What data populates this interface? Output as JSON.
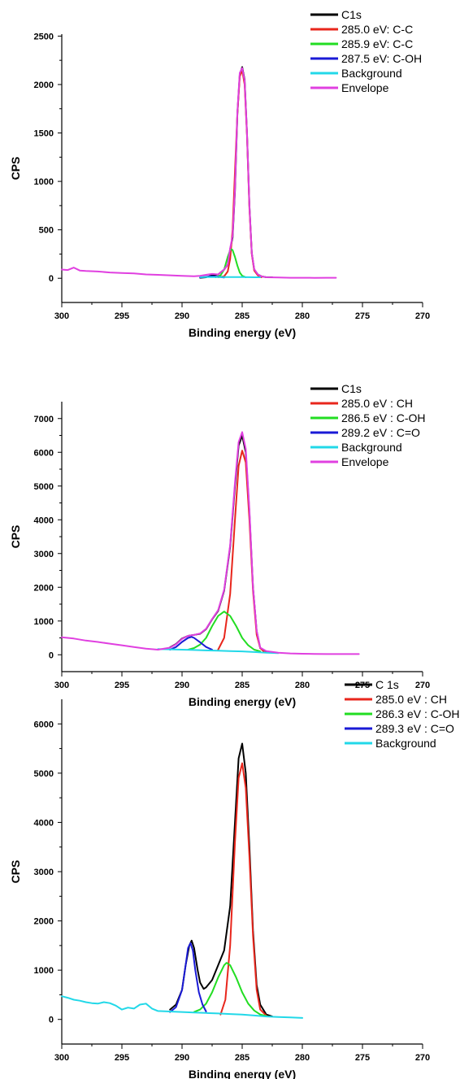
{
  "chart_data": [
    {
      "type": "line",
      "title": "",
      "xlabel": "Binding energy (eV)",
      "ylabel": "CPS",
      "xlim": [
        300,
        270
      ],
      "ylim": [
        -250,
        2520
      ],
      "x_ticks": [
        300,
        295,
        290,
        285,
        280,
        275,
        270
      ],
      "y_ticks": [
        0,
        500,
        1000,
        1500,
        2000,
        2500
      ],
      "legend_position": "top-right",
      "series": [
        {
          "name": "C1s",
          "color": "#000000",
          "x": [
            288.5,
            288.0,
            287.5,
            287.0,
            286.5,
            286.2,
            286.0,
            285.8,
            285.6,
            285.4,
            285.2,
            285.0,
            284.8,
            284.6,
            284.4,
            284.2,
            284.0,
            283.7,
            283.4,
            283.0,
            282.5
          ],
          "y": [
            5,
            10,
            30,
            40,
            90,
            140,
            300,
            420,
            900,
            1700,
            2100,
            2180,
            2050,
            1500,
            750,
            260,
            90,
            40,
            20,
            10,
            10
          ]
        },
        {
          "name": "285.0 eV: C-C",
          "color": "#e8261c",
          "x": [
            287.0,
            286.5,
            286.2,
            286.0,
            285.8,
            285.6,
            285.4,
            285.2,
            285.0,
            284.8,
            284.6,
            284.4,
            284.2,
            284.0,
            283.7,
            283.4
          ],
          "y": [
            10,
            20,
            70,
            200,
            500,
            1100,
            1700,
            2080,
            2150,
            2000,
            1480,
            720,
            250,
            80,
            30,
            10
          ]
        },
        {
          "name": "285.9 eV: C-C",
          "color": "#22dd22",
          "x": [
            287.2,
            286.8,
            286.5,
            286.2,
            286.0,
            285.9,
            285.8,
            285.6,
            285.4,
            285.2,
            285.0,
            284.7
          ],
          "y": [
            10,
            30,
            90,
            220,
            290,
            300,
            290,
            220,
            130,
            60,
            25,
            10
          ]
        },
        {
          "name": "287.5 eV: C-OH",
          "color": "#1a1ad6",
          "x": [
            288.5,
            288.0,
            287.5,
            287.0,
            286.5
          ],
          "y": [
            8,
            15,
            20,
            15,
            8
          ]
        },
        {
          "name": "Background",
          "color": "#22d8e8",
          "x": [
            288.5,
            287.0,
            286.0,
            285.0,
            284.0,
            283.5
          ],
          "y": [
            12,
            12,
            12,
            12,
            10,
            10
          ]
        },
        {
          "name": "Envelope",
          "color": "#e040e0",
          "x": [
            300.0,
            299.5,
            299.0,
            298.5,
            298.0,
            297.0,
            296.0,
            295.0,
            294.0,
            293.0,
            292.0,
            291.0,
            290.0,
            289.0,
            288.5,
            288.0,
            287.5,
            287.0,
            286.5,
            286.2,
            286.0,
            285.8,
            285.6,
            285.4,
            285.2,
            285.0,
            284.8,
            284.6,
            284.4,
            284.2,
            284.0,
            283.7,
            283.4,
            283.0,
            282.0,
            281.0,
            280.0,
            279.0,
            278.0,
            277.2
          ],
          "y": [
            90,
            85,
            110,
            80,
            75,
            70,
            60,
            55,
            50,
            40,
            35,
            30,
            25,
            20,
            25,
            35,
            45,
            40,
            90,
            140,
            310,
            440,
            920,
            1720,
            2120,
            2170,
            2040,
            1500,
            750,
            260,
            95,
            40,
            20,
            10,
            8,
            5,
            5,
            4,
            5,
            5
          ]
        }
      ]
    },
    {
      "type": "line",
      "title": "",
      "xlabel": "Binding energy (eV)",
      "ylabel": "CPS",
      "xlim": [
        300,
        270
      ],
      "ylim": [
        -500,
        7500
      ],
      "x_ticks": [
        300,
        295,
        290,
        285,
        280,
        275,
        270
      ],
      "y_ticks": [
        0,
        1000,
        2000,
        3000,
        4000,
        5000,
        6000,
        7000
      ],
      "legend_position": "top-right",
      "series": [
        {
          "name": "C1s",
          "color": "#000000",
          "x": [
            291.0,
            290.5,
            290.0,
            289.5,
            289.0,
            288.5,
            288.0,
            287.5,
            287.0,
            286.5,
            286.0,
            285.6,
            285.3,
            285.0,
            284.7,
            284.4,
            284.1,
            283.8,
            283.5,
            283.0
          ],
          "y": [
            220,
            320,
            480,
            560,
            590,
            620,
            760,
            1050,
            1300,
            1900,
            3200,
            5000,
            6200,
            6500,
            6000,
            4200,
            2000,
            700,
            200,
            100
          ]
        },
        {
          "name": "285.0 eV :  CH",
          "color": "#e8261c",
          "x": [
            287.0,
            286.5,
            286.0,
            285.6,
            285.3,
            285.0,
            284.7,
            284.4,
            284.1,
            283.8,
            283.5,
            283.2
          ],
          "y": [
            150,
            500,
            1800,
            4000,
            5600,
            6050,
            5700,
            4000,
            1900,
            600,
            200,
            100
          ]
        },
        {
          "name": "286.5 eV : C-OH",
          "color": "#22dd22",
          "x": [
            289.5,
            289.0,
            288.5,
            288.0,
            287.5,
            287.0,
            286.5,
            286.0,
            285.5,
            285.0,
            284.5,
            284.0,
            283.5
          ],
          "y": [
            150,
            200,
            300,
            500,
            850,
            1150,
            1280,
            1150,
            850,
            500,
            280,
            150,
            100
          ]
        },
        {
          "name": "289.2 eV : C=O",
          "color": "#1a1ad6",
          "x": [
            291.0,
            290.5,
            290.0,
            289.5,
            289.2,
            289.0,
            288.5,
            288.0,
            287.5
          ],
          "y": [
            150,
            230,
            380,
            500,
            530,
            500,
            370,
            230,
            150
          ]
        },
        {
          "name": "Background",
          "color": "#22d8e8",
          "x": [
            292.0,
            291.0,
            290.0,
            289.0,
            288.0,
            287.0,
            286.0,
            285.0,
            284.0,
            283.0,
            282.0
          ],
          "y": [
            170,
            160,
            150,
            140,
            130,
            120,
            110,
            100,
            80,
            60,
            50
          ]
        },
        {
          "name": "Envelope",
          "color": "#e040e0",
          "x": [
            300.0,
            299.0,
            298.0,
            297.0,
            296.0,
            295.0,
            294.0,
            293.0,
            292.0,
            291.0,
            290.5,
            290.0,
            289.5,
            289.0,
            288.5,
            288.0,
            287.5,
            287.0,
            286.5,
            286.0,
            285.6,
            285.3,
            285.0,
            284.7,
            284.4,
            284.1,
            283.8,
            283.5,
            283.0,
            282.0,
            281.0,
            280.0,
            279.0,
            278.0,
            277.0,
            276.0,
            275.3
          ],
          "y": [
            520,
            480,
            420,
            380,
            330,
            280,
            230,
            180,
            150,
            210,
            310,
            470,
            560,
            590,
            630,
            770,
            1060,
            1320,
            1930,
            3250,
            5100,
            6300,
            6600,
            6100,
            4300,
            2000,
            720,
            210,
            110,
            60,
            40,
            30,
            25,
            20,
            20,
            20,
            20
          ]
        }
      ]
    },
    {
      "type": "line",
      "title": "",
      "xlabel": "Binding energy (eV)",
      "ylabel": "CPS",
      "xlim": [
        300,
        270
      ],
      "ylim": [
        -500,
        6500
      ],
      "x_ticks": [
        300,
        295,
        290,
        285,
        280,
        275,
        270
      ],
      "y_ticks": [
        0,
        1000,
        2000,
        3000,
        4000,
        5000,
        6000
      ],
      "legend_position": "top-right",
      "series": [
        {
          "name": "C 1s",
          "color": "#000000",
          "x": [
            291.0,
            290.5,
            290.0,
            289.7,
            289.4,
            289.2,
            289.0,
            288.7,
            288.5,
            288.2,
            288.0,
            287.5,
            287.0,
            286.5,
            286.0,
            285.6,
            285.3,
            285.0,
            284.7,
            284.4,
            284.1,
            283.8,
            283.5,
            283.0,
            282.5
          ],
          "y": [
            200,
            300,
            600,
            1100,
            1500,
            1600,
            1450,
            1000,
            750,
            620,
            650,
            800,
            1100,
            1400,
            2300,
            4000,
            5300,
            5600,
            5000,
            3500,
            1800,
            700,
            300,
            100,
            60
          ]
        },
        {
          "name": "285.0 eV : CH",
          "color": "#e8261c",
          "x": [
            286.8,
            286.4,
            286.0,
            285.6,
            285.3,
            285.0,
            284.7,
            284.4,
            284.1,
            283.8,
            283.5,
            283.0
          ],
          "y": [
            100,
            400,
            1500,
            3600,
            4900,
            5200,
            4700,
            3300,
            1700,
            600,
            200,
            80
          ]
        },
        {
          "name": "286.3 eV : C-OH",
          "color": "#22dd22",
          "x": [
            289.0,
            288.5,
            288.0,
            287.5,
            287.0,
            286.5,
            286.3,
            286.0,
            285.5,
            285.0,
            284.5,
            284.0,
            283.5,
            283.0
          ],
          "y": [
            150,
            200,
            320,
            550,
            850,
            1100,
            1150,
            1100,
            850,
            550,
            320,
            180,
            100,
            70
          ]
        },
        {
          "name": "289.3 eV : C=O",
          "color": "#1a1ad6",
          "x": [
            291.0,
            290.5,
            290.0,
            289.7,
            289.5,
            289.3,
            289.1,
            288.9,
            288.6,
            288.3,
            288.0
          ],
          "y": [
            150,
            250,
            600,
            1100,
            1450,
            1550,
            1400,
            1000,
            550,
            300,
            160
          ]
        },
        {
          "name": "Background",
          "color": "#22d8e8",
          "x": [
            300.0,
            299.5,
            299.0,
            298.5,
            298.0,
            297.5,
            297.0,
            296.5,
            296.0,
            295.5,
            295.0,
            294.5,
            294.0,
            293.5,
            293.0,
            292.5,
            292.0,
            291.0,
            290.0,
            289.0,
            288.0,
            287.0,
            286.0,
            285.0,
            284.0,
            283.0,
            282.0,
            281.0,
            280.0
          ],
          "y": [
            470,
            440,
            400,
            380,
            350,
            330,
            320,
            350,
            330,
            280,
            200,
            240,
            220,
            300,
            320,
            220,
            170,
            160,
            150,
            140,
            130,
            120,
            110,
            100,
            80,
            60,
            50,
            40,
            30
          ]
        }
      ]
    }
  ]
}
